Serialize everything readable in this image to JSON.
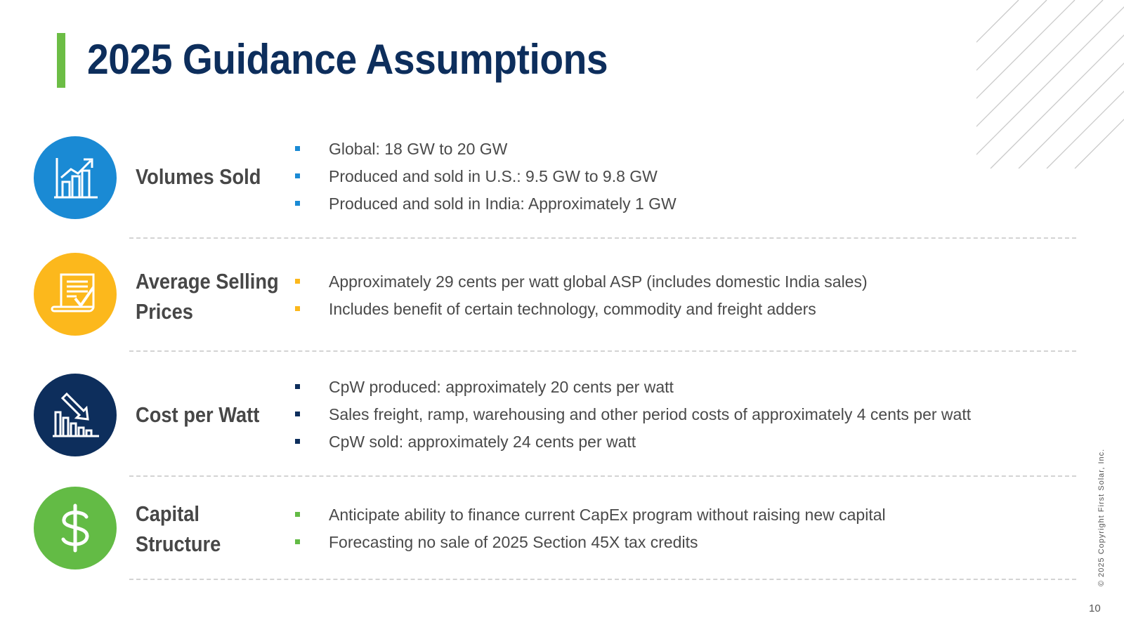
{
  "slide": {
    "title": "2025 Guidance Assumptions",
    "copyright": "© 2025 Copyright First Solar, Inc.",
    "page_number": "10"
  },
  "colors": {
    "title": "#0d2e5c",
    "accent_green": "#6cbd45",
    "volumes_blue": "#1a8ad4",
    "asp_yellow": "#fcb81c",
    "cost_navy": "#0d2e5c",
    "capital_green": "#63bb45"
  },
  "sections": [
    {
      "icon": "growth-chart-icon",
      "label_lines": [
        "Volumes Sold"
      ],
      "bullets": [
        "Global:  18 GW to 20 GW",
        "Produced and sold in U.S.:  9.5 GW to 9.8 GW",
        "Produced and sold in India:  Approximately 1 GW"
      ]
    },
    {
      "icon": "price-document-icon",
      "label_lines": [
        "Average Selling",
        "Prices"
      ],
      "bullets": [
        "Approximately 29 cents per watt global ASP (includes domestic India sales)",
        "Includes benefit of certain technology, commodity and freight adders"
      ]
    },
    {
      "icon": "declining-chart-icon",
      "label_lines": [
        "Cost per Watt"
      ],
      "bullets": [
        "CpW produced:  approximately 20 cents per watt",
        "Sales freight, ramp, warehousing and other period costs of approximately 4 cents per watt",
        "CpW sold: approximately 24 cents per watt"
      ]
    },
    {
      "icon": "dollar-sign-icon",
      "label_lines": [
        "Capital",
        "Structure"
      ],
      "bullets": [
        "Anticipate ability to finance current CapEx program without raising new capital",
        "Forecasting no sale of 2025 Section 45X tax credits"
      ]
    }
  ]
}
